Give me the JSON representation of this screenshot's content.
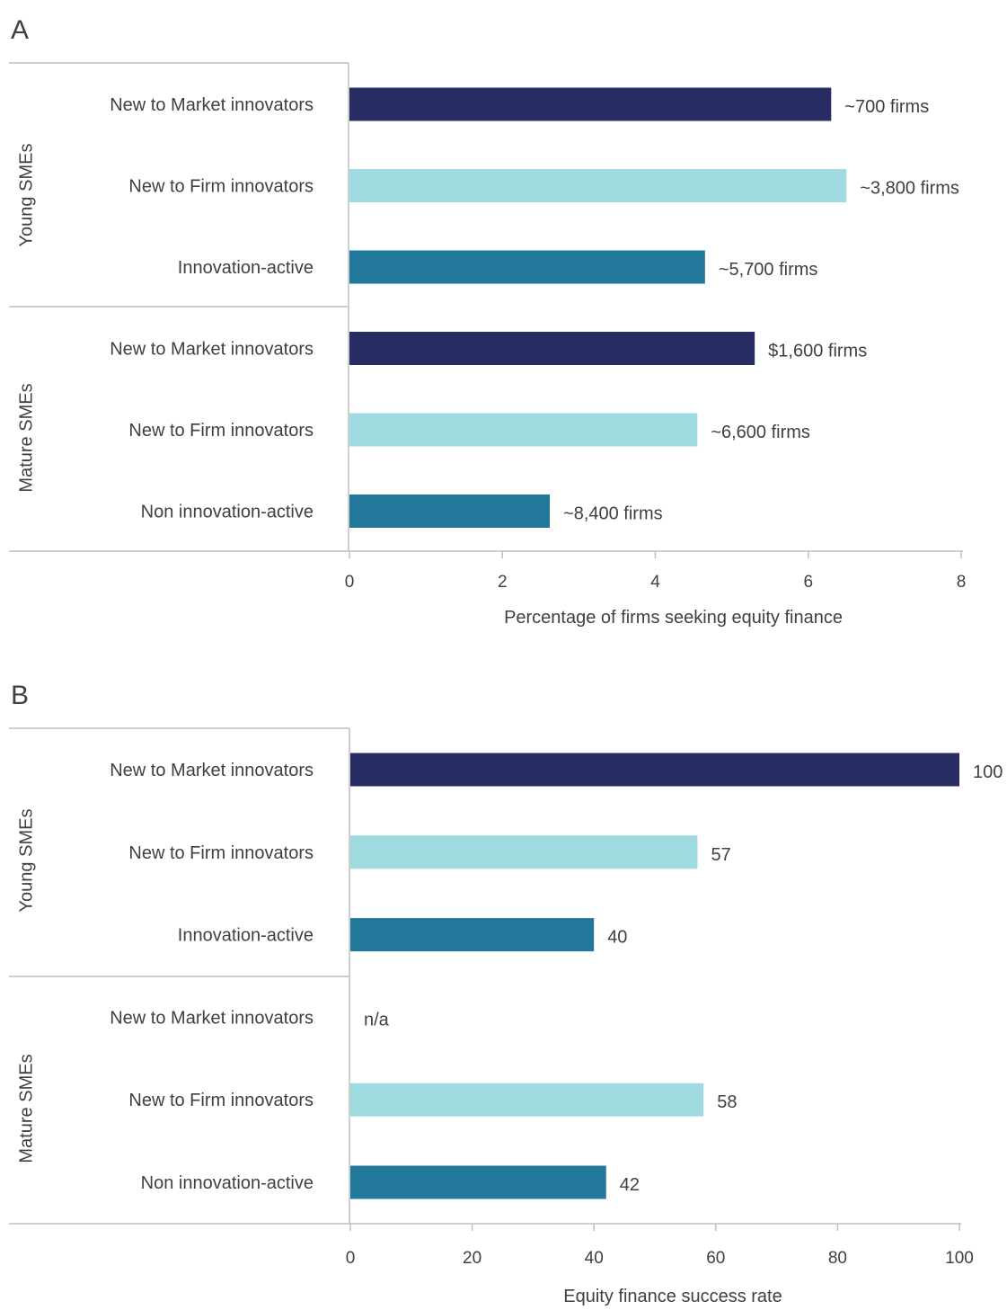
{
  "chart_data": [
    {
      "panel": "A",
      "type": "bar",
      "orientation": "horizontal",
      "groups": [
        {
          "name": "Young SMEs",
          "categories": [
            "New to Market innovators",
            "New to Firm innovators",
            "Innovation-active"
          ],
          "values": [
            6.3,
            6.5,
            4.65
          ],
          "labels": [
            "~700 firms",
            "~3,800 firms",
            "~5,700 firms"
          ],
          "colors": [
            "#272c63",
            "#9fdae0",
            "#21789b"
          ]
        },
        {
          "name": "Mature SMEs",
          "categories": [
            "New to Market innovators",
            "New to Firm innovators",
            "Non innovation-active"
          ],
          "values": [
            5.3,
            4.55,
            2.62
          ],
          "labels": [
            "$1,600 firms",
            "~6,600 firms",
            "~8,400 firms"
          ],
          "colors": [
            "#272c63",
            "#9fdae0",
            "#21789b"
          ]
        }
      ],
      "xlabel": "Percentage of firms seeking equity finance",
      "xlim": [
        0,
        8
      ],
      "xticks": [
        "0",
        "2",
        "4",
        "6",
        "8"
      ]
    },
    {
      "panel": "B",
      "type": "bar",
      "orientation": "horizontal",
      "groups": [
        {
          "name": "Young SMEs",
          "categories": [
            "New to Market innovators",
            "New to Firm innovators",
            "Innovation-active"
          ],
          "values": [
            100,
            57,
            40
          ],
          "labels": [
            "100",
            "57",
            "40"
          ],
          "colors": [
            "#272c63",
            "#9fdae0",
            "#21789b"
          ]
        },
        {
          "name": "Mature SMEs",
          "categories": [
            "New to Market innovators",
            "New to Firm innovators",
            "Non innovation-active"
          ],
          "values": [
            null,
            58,
            42
          ],
          "labels": [
            "n/a",
            "58",
            "42"
          ],
          "colors": [
            "#272c63",
            "#9fdae0",
            "#21789b"
          ]
        }
      ],
      "xlabel": "Equity finance success rate",
      "xlim": [
        0,
        100
      ],
      "xticks": [
        "0",
        "20",
        "40",
        "60",
        "80",
        "100"
      ]
    }
  ]
}
